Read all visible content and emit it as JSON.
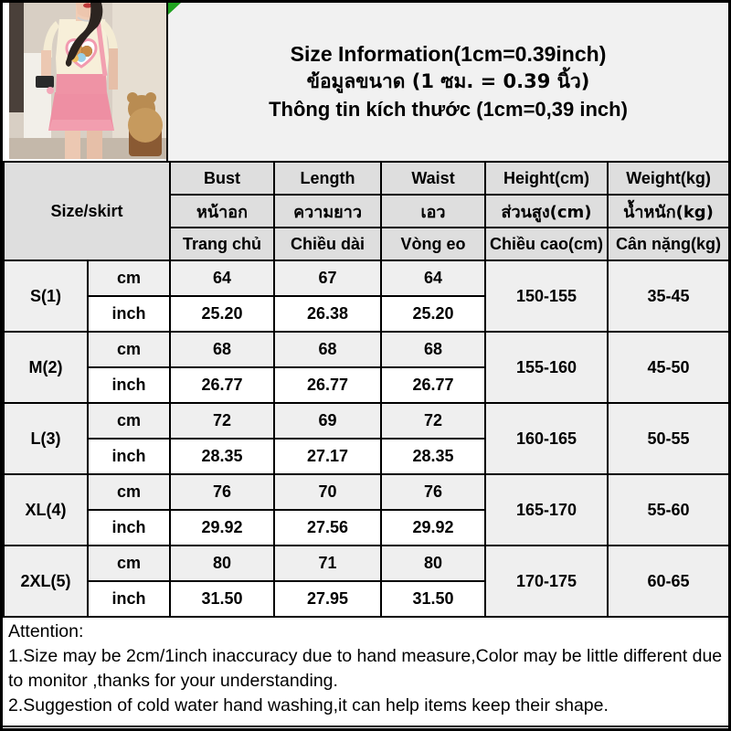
{
  "title": {
    "line1_en": "Size Information(1cm=0.39inch)",
    "line2_th": "ข้อมูลขนาด (1 ซม. = 0.39 นิ้ว)",
    "line3_vi": "Thông tin kích thước (1cm=0,39 inch)"
  },
  "table": {
    "corner_label": "Size/skirt",
    "columns": [
      {
        "en": "Bust",
        "th": "หน้าอก",
        "vi": "Trang chủ"
      },
      {
        "en": "Length",
        "th": "ความยาว",
        "vi": "Chiều dài"
      },
      {
        "en": "Waist",
        "th": "เอว",
        "vi": "Vòng eo"
      },
      {
        "en": "Height(cm)",
        "th": "ส่วนสูง(cm)",
        "vi": "Chiều cao(cm)"
      },
      {
        "en": "Weight(kg)",
        "th": "น้ำหนัก(kg)",
        "vi": "Cân nặng(kg)"
      }
    ],
    "unit_labels": {
      "cm": "cm",
      "inch": "inch"
    },
    "rows": [
      {
        "size": "S(1)",
        "cm": [
          "64",
          "67",
          "64"
        ],
        "inch": [
          "25.20",
          "26.38",
          "25.20"
        ],
        "height": "150-155",
        "weight": "35-45"
      },
      {
        "size": "M(2)",
        "cm": [
          "68",
          "68",
          "68"
        ],
        "inch": [
          "26.77",
          "26.77",
          "26.77"
        ],
        "height": "155-160",
        "weight": "45-50"
      },
      {
        "size": "L(3)",
        "cm": [
          "72",
          "69",
          "72"
        ],
        "inch": [
          "28.35",
          "27.17",
          "28.35"
        ],
        "height": "160-165",
        "weight": "50-55"
      },
      {
        "size": "XL(4)",
        "cm": [
          "76",
          "70",
          "76"
        ],
        "inch": [
          "29.92",
          "27.56",
          "29.92"
        ],
        "height": "165-170",
        "weight": "55-60"
      },
      {
        "size": "2XL(5)",
        "cm": [
          "80",
          "71",
          "80"
        ],
        "inch": [
          "31.50",
          "27.95",
          "31.50"
        ],
        "height": "170-175",
        "weight": "60-65"
      }
    ]
  },
  "attention": {
    "heading": "Attention:",
    "line1": "1.Size may be 2cm/1inch inaccuracy due to hand measure,Color may be little different due to monitor ,thanks for your understanding.",
    "line2": "2.Suggestion of cold water hand washing,it can help items keep their shape."
  },
  "photo": {
    "description": "model wearing cream bear-print tee and pink suspender skirt"
  },
  "colors": {
    "corner_marker_green": "#1fa31f",
    "border_black": "#000000",
    "header_gray": "#dedede",
    "size_label_gray": "#dcdcdc",
    "cm_row_gray": "#efefef",
    "title_bg_gray": "#f1f1f1",
    "skirt_pink": "#ee8fa3",
    "tee_cream": "#f7efd9"
  }
}
